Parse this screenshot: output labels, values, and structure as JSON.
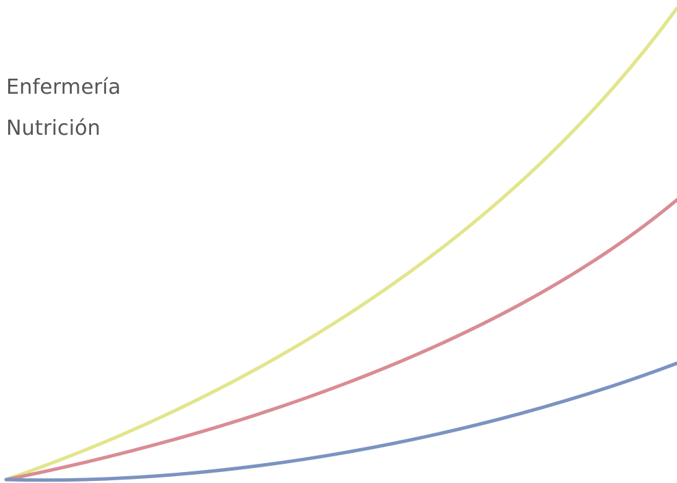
{
  "labels": [
    "Enfermería",
    "Nutrición"
  ],
  "curves": [
    {
      "key": "yellow",
      "color": "#e2e58b"
    },
    {
      "key": "red",
      "color": "#d98c94"
    },
    {
      "key": "blue",
      "color": "#7b93c1"
    }
  ]
}
